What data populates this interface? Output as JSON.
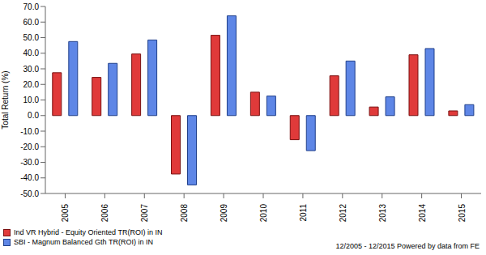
{
  "chart_data": {
    "type": "bar",
    "y_label": "Total Return (%)",
    "annotations": [
      "12/2005 - 12/2015 Powered by data from FE"
    ],
    "categories": [
      "2005",
      "2006",
      "2007",
      "2008",
      "2009",
      "2010",
      "2011",
      "2012",
      "2013",
      "2014",
      "2015"
    ],
    "series": [
      {
        "name": "Ind VR Hybrid - Equity Oriented TR(ROI) in IN",
        "color": "#e03a3a",
        "values": [
          27.5,
          24.5,
          39.5,
          -37.5,
          51.5,
          15,
          -15.5,
          25.5,
          5.5,
          39,
          3
        ]
      },
      {
        "name": "SBI - Magnum Balanced Gth TR(ROI) in IN",
        "color": "#5e86e6",
        "values": [
          47.5,
          33.5,
          48.5,
          -44.5,
          64,
          12.5,
          -22.5,
          35,
          12,
          43,
          7
        ]
      }
    ],
    "ylim": [
      -50,
      70
    ],
    "yticks": [
      {
        "value": -50,
        "label": "-50.0"
      },
      {
        "value": -40,
        "label": "-40.0"
      },
      {
        "value": -30,
        "label": "-30.0"
      },
      {
        "value": -20,
        "label": "-20.0"
      },
      {
        "value": -10,
        "label": "-10.0"
      },
      {
        "value": 0,
        "label": "0.0"
      },
      {
        "value": 10,
        "label": "10.0"
      },
      {
        "value": 20,
        "label": "20.0"
      },
      {
        "value": 30,
        "label": "30.0"
      },
      {
        "value": 40,
        "label": "40.0"
      },
      {
        "value": 50,
        "label": "50.0"
      },
      {
        "value": 60,
        "label": "60.0"
      },
      {
        "value": 70,
        "label": "70.0"
      }
    ],
    "grid": false
  }
}
